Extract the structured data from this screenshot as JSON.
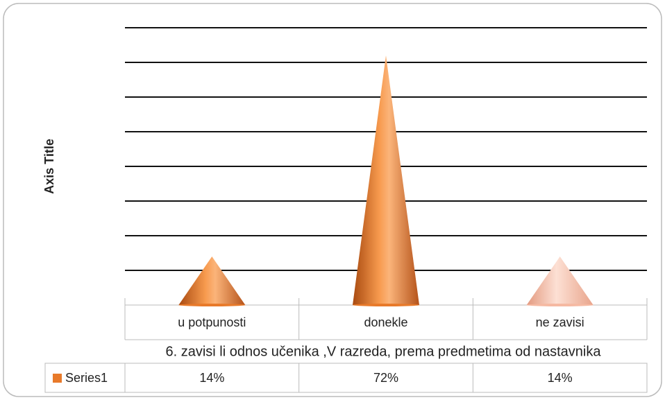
{
  "chart_data": {
    "type": "cone",
    "y_label": "Axis Title",
    "x_label": "6. zavisi li odnos učenika ,V razreda, prema predmetima od nastavnika",
    "categories": [
      "u potpunosti",
      "donekle",
      "ne zavisi"
    ],
    "series": [
      {
        "name": "Series1",
        "color": "#e87a2a",
        "point_colors": [
          "#e87a2a",
          "#e87a2a",
          "#f5b9a2"
        ],
        "values": [
          14,
          72,
          14
        ],
        "value_labels": [
          "14%",
          "72%",
          "14%"
        ]
      }
    ],
    "ylim": [
      0,
      80
    ],
    "yticks": [
      0,
      10,
      20,
      30,
      40,
      50,
      60,
      70,
      80
    ],
    "grid": true,
    "legend": "data-table"
  }
}
